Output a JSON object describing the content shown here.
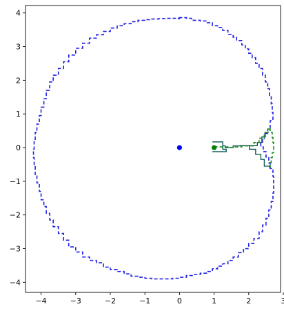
{
  "chart_data": {
    "type": "line",
    "title": "",
    "xlabel": "",
    "ylabel": "",
    "xlim": [
      -4.45,
      2.92
    ],
    "ylim": [
      -4.3,
      4.22
    ],
    "x_ticks": [
      -4,
      -3,
      -2,
      -1,
      0,
      1,
      2,
      3
    ],
    "y_ticks": [
      -4,
      -3,
      -2,
      -1,
      0,
      1,
      2,
      3,
      4
    ],
    "x_tick_labels": [
      "−4",
      "−3",
      "−2",
      "−1",
      "0",
      "1",
      "2",
      "3"
    ],
    "y_tick_labels": [
      "−4",
      "−3",
      "−2",
      "−1",
      "0",
      "1",
      "2",
      "3",
      "4"
    ],
    "grid": false,
    "series": [
      {
        "style": "dashed-step",
        "color": "#1f1fe6",
        "points": [
          [
            -0.2,
            3.84
          ],
          [
            -0.1,
            3.84
          ],
          [
            0.0,
            3.83
          ],
          [
            -0.05,
            3.86
          ],
          [
            0.2,
            3.84
          ],
          [
            0.35,
            3.78
          ],
          [
            0.6,
            3.76
          ],
          [
            0.8,
            3.71
          ],
          [
            0.95,
            3.62
          ],
          [
            1.1,
            3.57
          ],
          [
            1.25,
            3.48
          ],
          [
            1.4,
            3.36
          ],
          [
            1.55,
            3.28
          ],
          [
            1.65,
            3.18
          ],
          [
            1.8,
            3.05
          ],
          [
            1.9,
            2.93
          ],
          [
            2.0,
            2.8
          ],
          [
            2.1,
            2.67
          ],
          [
            2.2,
            2.5
          ],
          [
            2.3,
            2.35
          ],
          [
            2.4,
            2.15
          ],
          [
            2.48,
            1.95
          ],
          [
            2.55,
            1.75
          ],
          [
            2.6,
            1.55
          ],
          [
            2.65,
            1.3
          ],
          [
            2.68,
            1.05
          ],
          [
            2.7,
            0.8
          ],
          [
            2.62,
            0.55
          ],
          [
            2.55,
            0.42
          ],
          [
            2.45,
            0.25
          ],
          [
            2.4,
            0.12
          ],
          [
            2.35,
            0.02
          ],
          [
            2.42,
            -0.12
          ],
          [
            2.5,
            -0.28
          ],
          [
            2.58,
            -0.45
          ],
          [
            2.62,
            -0.62
          ],
          [
            2.7,
            -0.85
          ],
          [
            2.72,
            -1.1
          ],
          [
            2.72,
            -1.35
          ],
          [
            2.7,
            -1.6
          ],
          [
            2.65,
            -1.85
          ],
          [
            2.58,
            -2.1
          ],
          [
            2.5,
            -2.3
          ],
          [
            2.4,
            -2.5
          ],
          [
            2.3,
            -2.7
          ],
          [
            2.15,
            -2.85
          ],
          [
            2.0,
            -3.0
          ],
          [
            1.85,
            -3.12
          ],
          [
            1.7,
            -3.25
          ],
          [
            1.55,
            -3.35
          ],
          [
            1.4,
            -3.45
          ],
          [
            1.25,
            -3.52
          ],
          [
            1.1,
            -3.6
          ],
          [
            0.95,
            -3.68
          ],
          [
            0.8,
            -3.73
          ],
          [
            0.6,
            -3.77
          ],
          [
            0.4,
            -3.8
          ],
          [
            0.2,
            -3.85
          ],
          [
            0.0,
            -3.88
          ],
          [
            -0.2,
            -3.9
          ],
          [
            -0.4,
            -3.9
          ],
          [
            -0.6,
            -3.9
          ],
          [
            -0.8,
            -3.88
          ],
          [
            -1.0,
            -3.85
          ],
          [
            -1.2,
            -3.82
          ],
          [
            -1.4,
            -3.75
          ],
          [
            -1.6,
            -3.68
          ],
          [
            -1.8,
            -3.62
          ],
          [
            -2.0,
            -3.55
          ],
          [
            -2.2,
            -3.42
          ],
          [
            -2.4,
            -3.35
          ],
          [
            -2.6,
            -3.25
          ],
          [
            -2.8,
            -3.1
          ],
          [
            -3.0,
            -2.95
          ],
          [
            -3.2,
            -2.75
          ],
          [
            -3.35,
            -2.55
          ],
          [
            -3.5,
            -2.35
          ],
          [
            -3.65,
            -2.15
          ],
          [
            -3.75,
            -1.95
          ],
          [
            -3.85,
            -1.75
          ],
          [
            -3.92,
            -1.55
          ],
          [
            -4.0,
            -1.3
          ],
          [
            -4.05,
            -1.05
          ],
          [
            -4.12,
            -0.8
          ],
          [
            -4.17,
            -0.55
          ],
          [
            -4.2,
            -0.3
          ],
          [
            -4.22,
            -0.05
          ],
          [
            -4.2,
            0.2
          ],
          [
            -4.17,
            0.45
          ],
          [
            -4.12,
            0.7
          ],
          [
            -4.05,
            0.95
          ],
          [
            -4.0,
            1.2
          ],
          [
            -3.92,
            1.45
          ],
          [
            -3.85,
            1.7
          ],
          [
            -3.75,
            1.95
          ],
          [
            -3.65,
            2.15
          ],
          [
            -3.5,
            2.35
          ],
          [
            -3.35,
            2.55
          ],
          [
            -3.2,
            2.75
          ],
          [
            -3.0,
            2.95
          ],
          [
            -2.8,
            3.1
          ],
          [
            -2.6,
            3.25
          ],
          [
            -2.4,
            3.35
          ],
          [
            -2.2,
            3.45
          ],
          [
            -2.0,
            3.55
          ],
          [
            -1.8,
            3.62
          ],
          [
            -1.6,
            3.68
          ],
          [
            -1.4,
            3.74
          ],
          [
            -1.2,
            3.78
          ],
          [
            -1.0,
            3.8
          ],
          [
            -0.8,
            3.82
          ],
          [
            -0.6,
            3.83
          ],
          [
            -0.4,
            3.84
          ],
          [
            -0.2,
            3.84
          ]
        ]
      },
      {
        "style": "solid-step",
        "color": "#0f5a5a",
        "points": [
          [
            0.95,
            0.17
          ],
          [
            1.25,
            0.17
          ],
          [
            1.25,
            0.05
          ],
          [
            1.32,
            0.05
          ],
          [
            1.32,
            0.0
          ],
          [
            1.55,
            0.0
          ],
          [
            1.55,
            0.05
          ],
          [
            1.75,
            0.05
          ],
          [
            1.75,
            0.06
          ],
          [
            2.02,
            0.06
          ],
          [
            2.02,
            -0.05
          ],
          [
            2.2,
            -0.05
          ],
          [
            2.2,
            -0.2
          ],
          [
            2.35,
            -0.2
          ],
          [
            2.35,
            -0.35
          ],
          [
            2.45,
            -0.35
          ],
          [
            2.45,
            -0.55
          ],
          [
            2.6,
            -0.55
          ],
          [
            2.6,
            -0.6
          ]
        ]
      },
      {
        "style": "solid-step",
        "color": "#0f5a5a",
        "points": [
          [
            0.95,
            -0.12
          ],
          [
            1.35,
            -0.12
          ],
          [
            1.35,
            -0.05
          ],
          [
            1.25,
            -0.05
          ],
          [
            1.25,
            0.05
          ]
        ]
      },
      {
        "style": "solid-step",
        "color": "#0f5a5a",
        "points": [
          [
            2.02,
            0.06
          ],
          [
            2.25,
            0.06
          ],
          [
            2.25,
            0.15
          ],
          [
            2.38,
            0.15
          ],
          [
            2.38,
            0.32
          ],
          [
            2.48,
            0.32
          ],
          [
            2.48,
            0.45
          ],
          [
            2.58,
            0.45
          ]
        ]
      },
      {
        "style": "dashed-step",
        "color": "#1f8a1f",
        "points": [
          [
            1.0,
            0.02
          ],
          [
            1.2,
            0.02
          ],
          [
            1.4,
            0.0
          ],
          [
            1.6,
            0.02
          ],
          [
            1.8,
            0.05
          ],
          [
            2.0,
            0.05
          ],
          [
            2.15,
            0.15
          ],
          [
            2.3,
            0.28
          ],
          [
            2.45,
            0.45
          ],
          [
            2.55,
            0.55
          ],
          [
            2.62,
            0.6
          ],
          [
            2.62,
            0.45
          ],
          [
            2.68,
            0.3
          ],
          [
            2.7,
            0.15
          ],
          [
            2.72,
            0.0
          ],
          [
            2.72,
            -0.15
          ],
          [
            2.68,
            -0.3
          ],
          [
            2.65,
            -0.45
          ],
          [
            2.62,
            -0.55
          ],
          [
            2.62,
            -0.6
          ]
        ]
      }
    ],
    "points": [
      {
        "x": 0,
        "y": 0,
        "color": "#0000ff"
      },
      {
        "x": 1,
        "y": 0,
        "color": "#008000"
      }
    ]
  }
}
